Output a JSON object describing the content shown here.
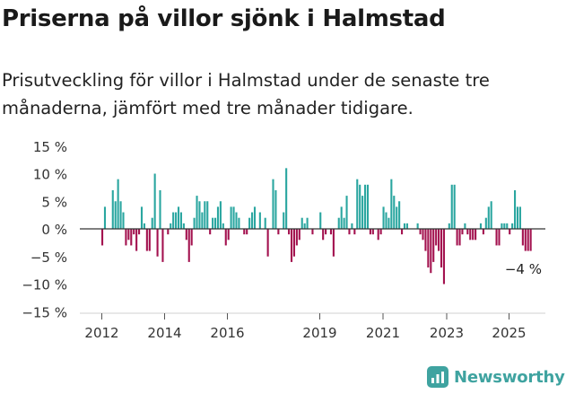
{
  "header": {
    "title": "Priserna på villor sjönk i Halmstad",
    "subtitle": "Prisutveckling för villor i Halmstad under de senaste tre månaderna, jämfört med tre månader tidigare."
  },
  "brand": {
    "name": "Newsworthy",
    "icon": "newsworthy-logo-icon",
    "color": "#3fa3a0"
  },
  "colors": {
    "positive": "#2aa6a0",
    "negative": "#a3124f",
    "zero_line": "#333333",
    "axis_text": "#333333"
  },
  "chart_data": {
    "type": "bar",
    "title": "",
    "xlabel": "",
    "ylabel": "",
    "ylim": [
      -15,
      15
    ],
    "yticks": [
      15,
      10,
      5,
      0,
      -5,
      -10,
      -15
    ],
    "ytick_labels": [
      "15 %",
      "10 %",
      "5 %",
      "0 %",
      "−5 %",
      "−10 %",
      "−15 %"
    ],
    "xticks": [
      "2012",
      "2014",
      "2016",
      "2019",
      "2021",
      "2023",
      "2025"
    ],
    "annotation": {
      "text": "−4 %"
    },
    "grid": false,
    "series": [
      {
        "values": [
          -3,
          4,
          0,
          0,
          7,
          5,
          9,
          5,
          3,
          -3,
          -2,
          -3,
          -1,
          -4,
          -1,
          4,
          1,
          -4,
          -4,
          2,
          10,
          -5,
          7,
          -6,
          0,
          -1,
          1,
          3,
          3,
          4,
          3,
          1,
          -2,
          -6,
          -3,
          2,
          6,
          5,
          3,
          5,
          5,
          -1,
          2,
          2,
          4,
          5,
          1,
          -3,
          -2,
          4,
          4,
          3,
          2,
          0,
          -1,
          -1,
          2,
          3,
          4,
          0,
          3,
          0,
          2,
          -5,
          0,
          9,
          7,
          -1,
          0,
          3,
          11,
          -1,
          -6,
          -5,
          -3,
          -2,
          2,
          1,
          2,
          0,
          -1,
          0,
          0,
          3,
          -2,
          -1,
          0,
          -1,
          -5,
          0,
          2,
          4,
          2,
          6,
          -1,
          1,
          -1,
          9,
          8,
          6,
          8,
          8,
          -1,
          -1,
          0,
          -2,
          -1,
          4,
          3,
          2,
          9,
          6,
          4,
          5,
          -1,
          1,
          1,
          0,
          0,
          0,
          1,
          -1,
          -2,
          -4,
          -7,
          -8,
          -6,
          -3,
          -4,
          -7,
          -10,
          0,
          1,
          8,
          8,
          -3,
          -3,
          -1,
          1,
          -1,
          -2,
          -2,
          -2,
          0,
          1,
          -1,
          2,
          4,
          5,
          0,
          -3,
          -3,
          1,
          1,
          1,
          -1,
          1,
          7,
          4,
          4,
          -3,
          -4,
          -4,
          -4
        ]
      }
    ]
  }
}
